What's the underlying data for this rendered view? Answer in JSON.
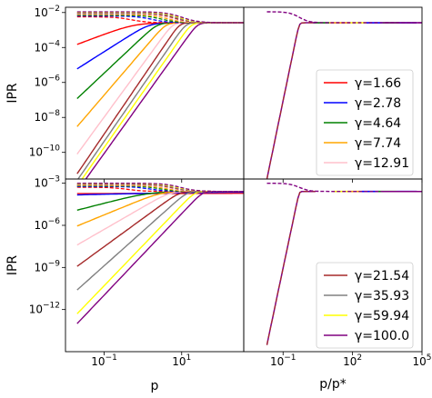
{
  "chart_data": {
    "type": "line",
    "layout": "2x2 grid, shared y-axis per row",
    "ylabel": "IPR",
    "xlabel_left": "p",
    "xlabel_right": "p/p*",
    "yscale": "log",
    "xscale": "log",
    "line_styles": {
      "solid": "IPR component 1",
      "dashed": "IPR component 2"
    },
    "panels": [
      {
        "id": "top-left",
        "xlim": [
          0.01,
          400
        ],
        "ylim": [
          3e-12,
          0.02
        ],
        "xticks": [
          "10^-1",
          "10^1"
        ],
        "yticks": [
          "10^-10",
          "10^-8",
          "10^-6",
          "10^-4",
          "10^-2"
        ],
        "series_names": [
          "γ=1.66",
          "γ=2.78",
          "γ=4.64",
          "γ=7.74",
          "γ=12.91",
          "γ=21.54",
          "γ=35.93",
          "γ=59.94",
          "γ=100.0"
        ],
        "solid_start_values": [
          0.00015,
          6e-06,
          1.2e-07,
          3e-09,
          8e-11,
          6e-12,
          2.5e-12,
          1.2e-12,
          6e-13
        ],
        "plateau": 0.0026,
        "dashed_start_value": 0.011
      },
      {
        "id": "top-right",
        "xlim": [
          0.002,
          100000
        ],
        "ylim": [
          3e-12,
          0.02
        ],
        "xticks": [
          "10^-1",
          "10^2",
          "10^5"
        ],
        "yticks": [],
        "collapse": true,
        "legend": [
          "γ=1.66",
          "γ=2.78",
          "γ=4.64",
          "γ=7.74",
          "γ=12.91"
        ]
      },
      {
        "id": "bottom-left",
        "xlim": [
          0.01,
          400
        ],
        "ylim": [
          1e-15,
          0.002
        ],
        "xticks": [
          "10^-1",
          "10^1"
        ],
        "yticks": [
          "10^-12",
          "10^-9",
          "10^-6",
          "10^-3"
        ],
        "series_names": [
          "γ=1.66",
          "γ=2.78",
          "γ=4.64",
          "γ=7.74",
          "γ=12.91",
          "γ=21.54",
          "γ=35.93",
          "γ=59.94",
          "γ=100.0"
        ],
        "solid_start_values": [
          0.00025,
          0.00018,
          1.2e-05,
          9e-07,
          4e-08,
          1.2e-09,
          2.5e-11,
          5e-13,
          1e-13
        ],
        "plateau": 0.00026,
        "dashed_start_value": 0.001
      },
      {
        "id": "bottom-right",
        "xlim": [
          0.002,
          100000
        ],
        "ylim": [
          1e-15,
          0.002
        ],
        "xticks": [
          "10^-1",
          "10^2",
          "10^5"
        ],
        "yticks": [],
        "collapse": true,
        "legend": [
          "γ=21.54",
          "γ=35.93",
          "γ=59.94",
          "γ=100.0"
        ]
      }
    ],
    "series": [
      {
        "name": "γ=1.66",
        "color": "#ff0000"
      },
      {
        "name": "γ=2.78",
        "color": "#0000ff"
      },
      {
        "name": "γ=4.64",
        "color": "#008000"
      },
      {
        "name": "γ=7.74",
        "color": "#ffa500"
      },
      {
        "name": "γ=12.91",
        "color": "#ffc0cb"
      },
      {
        "name": "γ=21.54",
        "color": "#a52a2a"
      },
      {
        "name": "γ=35.93",
        "color": "#808080"
      },
      {
        "name": "γ=59.94",
        "color": "#ffff00"
      },
      {
        "name": "γ=100.0",
        "color": "#800080"
      }
    ]
  }
}
